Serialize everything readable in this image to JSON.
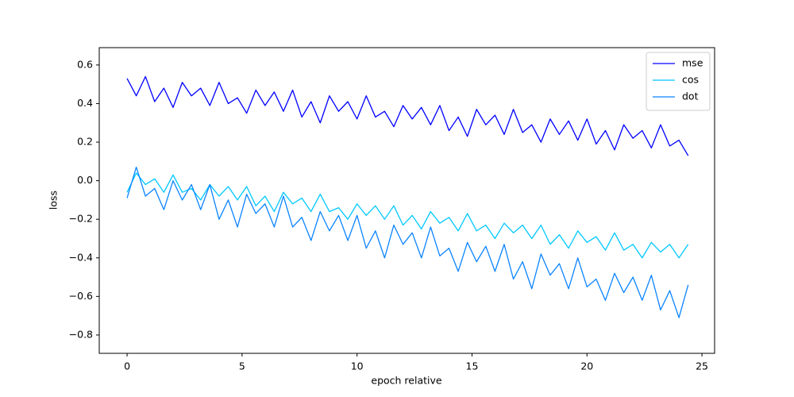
{
  "chart_data": {
    "type": "line",
    "xlabel": "epoch relative",
    "ylabel": "loss",
    "x": [
      0,
      0.4,
      0.8,
      1.2,
      1.6,
      2,
      2.4,
      2.8,
      3.2,
      3.6,
      4,
      4.4,
      4.8,
      5.2,
      5.6,
      6,
      6.4,
      6.8,
      7.2,
      7.6,
      8,
      8.4,
      8.8,
      9.2,
      9.6,
      10,
      10.4,
      10.8,
      11.2,
      11.6,
      12,
      12.4,
      12.8,
      13.2,
      13.6,
      14,
      14.4,
      14.8,
      15.2,
      15.6,
      16,
      16.4,
      16.8,
      17.2,
      17.6,
      18,
      18.4,
      18.8,
      19.2,
      19.6,
      20,
      20.4,
      20.8,
      21.2,
      21.6,
      22,
      22.4,
      22.8,
      23.2,
      23.6,
      24,
      24.4
    ],
    "series": [
      {
        "name": "mse",
        "color": "#0000ff",
        "values": [
          0.53,
          0.44,
          0.54,
          0.41,
          0.48,
          0.38,
          0.51,
          0.44,
          0.48,
          0.39,
          0.51,
          0.4,
          0.43,
          0.35,
          0.47,
          0.39,
          0.46,
          0.36,
          0.47,
          0.33,
          0.41,
          0.3,
          0.44,
          0.36,
          0.41,
          0.32,
          0.44,
          0.33,
          0.36,
          0.28,
          0.39,
          0.32,
          0.38,
          0.29,
          0.39,
          0.26,
          0.33,
          0.23,
          0.37,
          0.29,
          0.34,
          0.24,
          0.37,
          0.25,
          0.29,
          0.2,
          0.32,
          0.24,
          0.31,
          0.21,
          0.32,
          0.19,
          0.26,
          0.16,
          0.29,
          0.22,
          0.26,
          0.17,
          0.29,
          0.18,
          0.21,
          0.13
        ]
      },
      {
        "name": "cos",
        "color": "#00c8ff",
        "values": [
          -0.06,
          0.04,
          -0.02,
          0.01,
          -0.06,
          0.03,
          -0.06,
          -0.04,
          -0.1,
          -0.02,
          -0.08,
          -0.03,
          -0.1,
          -0.03,
          -0.13,
          -0.08,
          -0.16,
          -0.06,
          -0.12,
          -0.09,
          -0.16,
          -0.07,
          -0.16,
          -0.14,
          -0.2,
          -0.12,
          -0.18,
          -0.13,
          -0.2,
          -0.13,
          -0.23,
          -0.18,
          -0.25,
          -0.16,
          -0.22,
          -0.19,
          -0.26,
          -0.17,
          -0.26,
          -0.23,
          -0.3,
          -0.22,
          -0.27,
          -0.23,
          -0.3,
          -0.23,
          -0.33,
          -0.28,
          -0.35,
          -0.26,
          -0.32,
          -0.29,
          -0.36,
          -0.27,
          -0.36,
          -0.33,
          -0.4,
          -0.32,
          -0.37,
          -0.33,
          -0.4,
          -0.33
        ]
      },
      {
        "name": "dot",
        "color": "#0a84ff",
        "values": [
          -0.09,
          0.07,
          -0.08,
          -0.04,
          -0.15,
          0,
          -0.1,
          -0.02,
          -0.15,
          -0.02,
          -0.2,
          -0.1,
          -0.24,
          -0.07,
          -0.17,
          -0.12,
          -0.24,
          -0.08,
          -0.24,
          -0.19,
          -0.31,
          -0.16,
          -0.26,
          -0.18,
          -0.31,
          -0.18,
          -0.35,
          -0.26,
          -0.4,
          -0.23,
          -0.33,
          -0.27,
          -0.4,
          -0.24,
          -0.39,
          -0.35,
          -0.47,
          -0.32,
          -0.42,
          -0.34,
          -0.47,
          -0.33,
          -0.51,
          -0.42,
          -0.56,
          -0.38,
          -0.49,
          -0.43,
          -0.56,
          -0.4,
          -0.55,
          -0.51,
          -0.62,
          -0.48,
          -0.58,
          -0.5,
          -0.62,
          -0.49,
          -0.67,
          -0.57,
          -0.71,
          -0.54
        ]
      }
    ],
    "xlim": [
      -1.21,
      25.55
    ],
    "xticks": [
      0,
      5,
      10,
      15,
      20,
      25
    ],
    "ylim": [
      -0.895,
      0.69
    ],
    "yticks": [
      0.6,
      0.4,
      0.2,
      {
        "value": 0,
        "label": "0.0"
      },
      {
        "value": -0.2,
        "label": "−0.2"
      },
      {
        "value": -0.4,
        "label": "−0.4"
      },
      {
        "value": -0.6,
        "label": "−0.6"
      },
      {
        "value": -0.8,
        "label": "−0.8"
      }
    ],
    "legend": "upper right"
  }
}
